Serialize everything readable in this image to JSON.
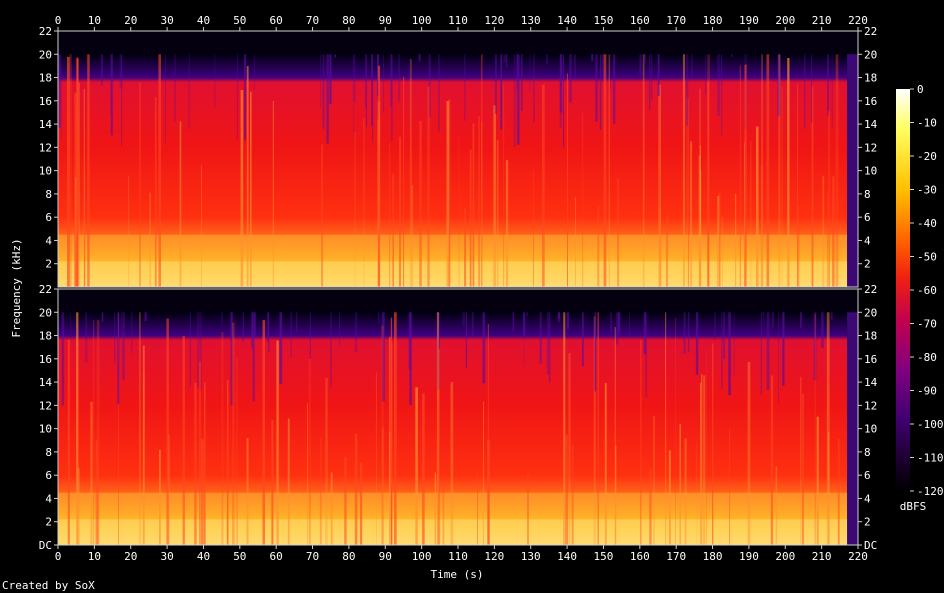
{
  "chart_data": {
    "type": "heatmap",
    "title": "",
    "xlabel": "Time (s)",
    "ylabel": "Frequency (kHz)",
    "x_range": [
      0,
      220
    ],
    "x_ticks": [
      "0",
      "10",
      "20",
      "30",
      "40",
      "50",
      "60",
      "70",
      "80",
      "90",
      "100",
      "110",
      "120",
      "130",
      "140",
      "150",
      "160",
      "170",
      "180",
      "190",
      "200",
      "210",
      "220"
    ],
    "y_range_khz": [
      0,
      22
    ],
    "y_ticks": [
      "DC",
      "2",
      "4",
      "6",
      "8",
      "10",
      "12",
      "14",
      "16",
      "18",
      "20",
      "22"
    ],
    "channels": 2,
    "colorbar": {
      "label": "dBFS",
      "range": [
        -120,
        0
      ],
      "ticks": [
        "0",
        "-10",
        "-20",
        "-30",
        "-40",
        "-50",
        "-60",
        "-70",
        "-80",
        "-90",
        "-100",
        "-110",
        "-120"
      ],
      "stops": [
        "#ffffff",
        "#ffff60",
        "#ffc000",
        "#ff6000",
        "#f02010",
        "#c00050",
        "#800080",
        "#400070",
        "#000000"
      ]
    },
    "bandwidth_cutoff_khz": 20,
    "audio_end_s": 217
  },
  "footer": {
    "credit": "Created by SoX"
  }
}
